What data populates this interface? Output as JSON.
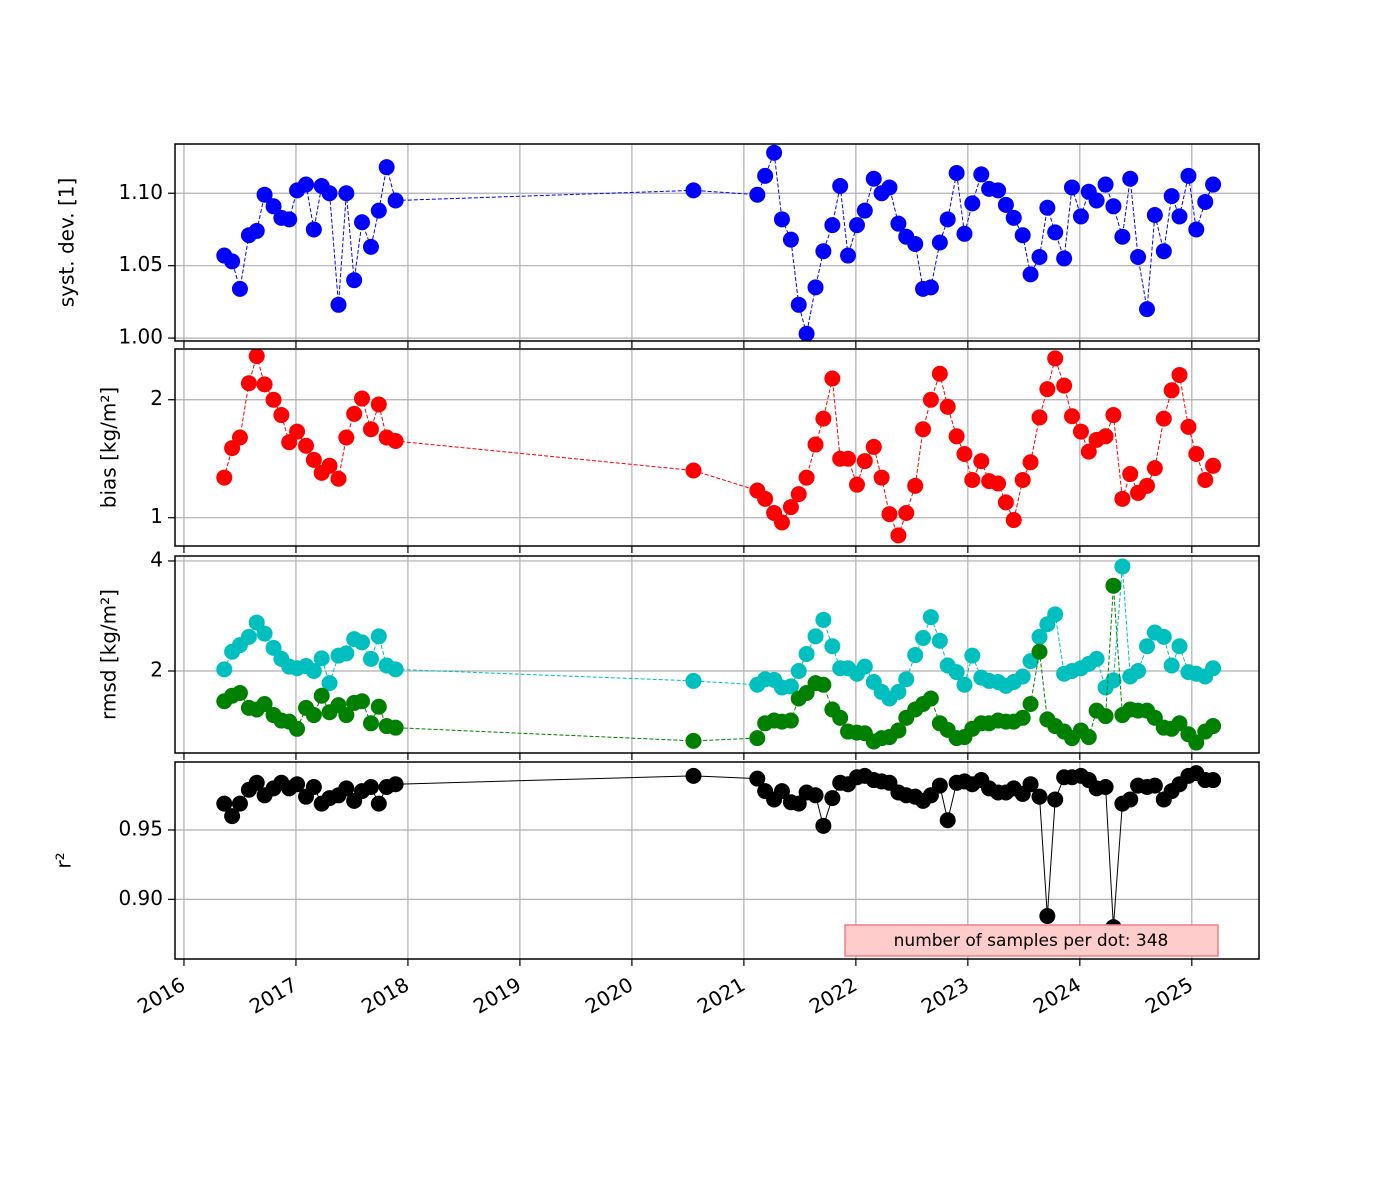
{
  "chart_data": [
    {
      "type": "line",
      "ylabel": "syst. dev. [1]",
      "x": [
        2016.36,
        2016.43,
        2016.5,
        2016.58,
        2016.65,
        2016.72,
        2016.8,
        2016.87,
        2016.94,
        2017.01,
        2017.09,
        2017.16,
        2017.23,
        2017.3,
        2017.38,
        2017.45,
        2017.52,
        2017.59,
        2017.67,
        2017.74,
        2017.81,
        2017.89,
        2020.55,
        2021.12,
        2021.19,
        2021.27,
        2021.34,
        2021.42,
        2021.49,
        2021.56,
        2021.64,
        2021.71,
        2021.79,
        2021.86,
        2021.93,
        2022.01,
        2022.08,
        2022.16,
        2022.23,
        2022.3,
        2022.38,
        2022.45,
        2022.53,
        2022.6,
        2022.67,
        2022.75,
        2022.82,
        2022.9,
        2022.97,
        2023.04,
        2023.12,
        2023.19,
        2023.27,
        2023.34,
        2023.41,
        2023.49,
        2023.56,
        2023.64,
        2023.71,
        2023.78,
        2023.86,
        2023.93,
        2024.01,
        2024.08,
        2024.15,
        2024.23,
        2024.3,
        2024.38,
        2024.45,
        2024.52,
        2024.6,
        2024.67,
        2024.75,
        2024.82,
        2024.89,
        2024.97,
        2025.04,
        2025.12,
        2025.19
      ],
      "series": [
        {
          "color": "#0000ff",
          "linestyle": "dashed",
          "values": [
            1.057,
            1.053,
            1.034,
            1.071,
            1.074,
            1.099,
            1.091,
            1.083,
            1.082,
            1.102,
            1.106,
            1.075,
            1.105,
            1.1,
            1.023,
            1.1,
            1.04,
            1.08,
            1.063,
            1.088,
            1.118,
            1.095,
            1.102,
            1.099,
            1.112,
            1.128,
            1.082,
            1.068,
            1.023,
            1.003,
            1.035,
            1.06,
            1.078,
            1.105,
            1.057,
            1.078,
            1.088,
            1.11,
            1.1,
            1.104,
            1.079,
            1.07,
            1.065,
            1.034,
            1.035,
            1.066,
            1.082,
            1.114,
            1.072,
            1.093,
            1.113,
            1.103,
            1.102,
            1.092,
            1.083,
            1.071,
            1.044,
            1.056,
            1.09,
            1.073,
            1.055,
            1.104,
            1.084,
            1.101,
            1.095,
            1.106,
            1.091,
            1.07,
            1.11,
            1.056,
            1.02,
            1.085,
            1.06,
            1.098,
            1.084,
            1.112,
            1.075,
            1.094,
            1.106
          ]
        }
      ],
      "xlim": [
        2015.92,
        2025.6
      ],
      "xticks": [
        2016,
        2017,
        2018,
        2019,
        2020,
        2021,
        2022,
        2023,
        2024,
        2025
      ],
      "ylim": [
        0.998,
        1.134
      ],
      "yticks": [
        {
          "value": 1.0,
          "label": "1.00"
        },
        1.05,
        {
          "value": 1.1,
          "label": "1.10"
        }
      ],
      "grid": true
    },
    {
      "type": "line",
      "ylabel": "bias [kg/m²]",
      "x": [
        2016.36,
        2016.43,
        2016.5,
        2016.58,
        2016.65,
        2016.72,
        2016.8,
        2016.87,
        2016.94,
        2017.01,
        2017.09,
        2017.16,
        2017.23,
        2017.3,
        2017.38,
        2017.45,
        2017.52,
        2017.59,
        2017.67,
        2017.74,
        2017.81,
        2017.89,
        2020.55,
        2021.12,
        2021.19,
        2021.27,
        2021.34,
        2021.42,
        2021.49,
        2021.56,
        2021.64,
        2021.71,
        2021.79,
        2021.86,
        2021.93,
        2022.01,
        2022.08,
        2022.16,
        2022.23,
        2022.3,
        2022.38,
        2022.45,
        2022.53,
        2022.6,
        2022.67,
        2022.75,
        2022.82,
        2022.9,
        2022.97,
        2023.04,
        2023.12,
        2023.19,
        2023.27,
        2023.34,
        2023.41,
        2023.49,
        2023.56,
        2023.64,
        2023.71,
        2023.78,
        2023.86,
        2023.93,
        2024.01,
        2024.08,
        2024.15,
        2024.23,
        2024.3,
        2024.38,
        2024.45,
        2024.52,
        2024.6,
        2024.67,
        2024.75,
        2024.82,
        2024.89,
        2024.97,
        2025.04,
        2025.12,
        2025.19
      ],
      "series": [
        {
          "color": "#ff0000",
          "linestyle": "dashed",
          "values": [
            1.34,
            1.59,
            1.68,
            2.14,
            2.37,
            2.13,
            2.0,
            1.87,
            1.64,
            1.73,
            1.61,
            1.49,
            1.38,
            1.44,
            1.33,
            1.68,
            1.88,
            2.01,
            1.75,
            1.96,
            1.68,
            1.65,
            1.4,
            1.23,
            1.16,
            1.04,
            0.96,
            1.09,
            1.2,
            1.34,
            1.62,
            1.84,
            2.18,
            1.5,
            1.5,
            1.28,
            1.48,
            1.6,
            1.34,
            1.03,
            0.85,
            1.04,
            1.27,
            1.75,
            2.0,
            2.22,
            1.94,
            1.69,
            1.54,
            1.32,
            1.48,
            1.31,
            1.29,
            1.13,
            0.98,
            1.32,
            1.47,
            1.85,
            2.09,
            2.35,
            2.12,
            1.86,
            1.73,
            1.56,
            1.66,
            1.69,
            1.87,
            1.16,
            1.37,
            1.21,
            1.27,
            1.42,
            1.84,
            2.08,
            2.21,
            1.77,
            1.54,
            1.32,
            1.44
          ]
        }
      ],
      "xlim": [
        2015.92,
        2025.6
      ],
      "xticks": [
        2016,
        2017,
        2018,
        2019,
        2020,
        2021,
        2022,
        2023,
        2024,
        2025
      ],
      "ylim": [
        0.76,
        2.43
      ],
      "yticks": [
        1,
        2
      ],
      "grid": true
    },
    {
      "type": "line",
      "ylabel": "rmsd [kg/m²]",
      "x": [
        2016.36,
        2016.43,
        2016.5,
        2016.58,
        2016.65,
        2016.72,
        2016.8,
        2016.87,
        2016.94,
        2017.01,
        2017.09,
        2017.16,
        2017.23,
        2017.3,
        2017.38,
        2017.45,
        2017.52,
        2017.59,
        2017.67,
        2017.74,
        2017.81,
        2017.89,
        2020.55,
        2021.12,
        2021.19,
        2021.27,
        2021.34,
        2021.42,
        2021.49,
        2021.56,
        2021.64,
        2021.71,
        2021.79,
        2021.86,
        2021.93,
        2022.01,
        2022.08,
        2022.16,
        2022.23,
        2022.3,
        2022.38,
        2022.45,
        2022.53,
        2022.6,
        2022.67,
        2022.75,
        2022.82,
        2022.9,
        2022.97,
        2023.04,
        2023.12,
        2023.19,
        2023.27,
        2023.34,
        2023.41,
        2023.49,
        2023.56,
        2023.64,
        2023.71,
        2023.78,
        2023.86,
        2023.93,
        2024.01,
        2024.08,
        2024.15,
        2024.23,
        2024.3,
        2024.38,
        2024.45,
        2024.52,
        2024.6,
        2024.67,
        2024.75,
        2024.82,
        2024.89,
        2024.97,
        2025.04,
        2025.12,
        2025.19
      ],
      "series": [
        {
          "color": "#00bfbf",
          "linestyle": "dashed",
          "values": [
            2.03,
            2.35,
            2.47,
            2.62,
            2.88,
            2.68,
            2.42,
            2.22,
            2.08,
            2.05,
            2.09,
            2.0,
            2.23,
            1.78,
            2.28,
            2.32,
            2.58,
            2.52,
            2.22,
            2.63,
            2.1,
            2.03,
            1.82,
            1.75,
            1.85,
            1.84,
            1.7,
            1.72,
            2.0,
            2.31,
            2.63,
            2.93,
            2.45,
            2.05,
            2.05,
            1.95,
            2.08,
            1.8,
            1.62,
            1.5,
            1.62,
            1.85,
            2.29,
            2.6,
            2.98,
            2.55,
            2.1,
            1.98,
            1.75,
            2.28,
            1.88,
            1.82,
            1.8,
            1.73,
            1.8,
            1.9,
            2.18,
            2.62,
            2.85,
            3.03,
            1.95,
            2.0,
            2.05,
            2.13,
            2.22,
            1.7,
            1.83,
            3.9,
            1.9,
            2.0,
            2.45,
            2.7,
            2.62,
            2.1,
            2.45,
            1.98,
            1.95,
            1.9,
            2.05
          ]
        },
        {
          "color": "#008000",
          "linestyle": "dashed",
          "values": [
            1.45,
            1.55,
            1.6,
            1.33,
            1.3,
            1.4,
            1.2,
            1.1,
            1.08,
            0.95,
            1.33,
            1.2,
            1.55,
            1.25,
            1.38,
            1.2,
            1.42,
            1.45,
            1.05,
            1.35,
            1.0,
            0.97,
            0.73,
            0.78,
            1.05,
            1.1,
            1.08,
            1.1,
            1.5,
            1.6,
            1.78,
            1.75,
            1.3,
            1.15,
            0.9,
            0.88,
            0.87,
            0.72,
            0.78,
            0.8,
            0.92,
            1.15,
            1.3,
            1.4,
            1.5,
            1.05,
            0.93,
            0.78,
            0.8,
            0.95,
            1.05,
            1.05,
            1.1,
            1.08,
            1.08,
            1.15,
            1.4,
            2.35,
            1.12,
            1.0,
            0.9,
            0.78,
            0.92,
            0.8,
            1.28,
            1.18,
            3.55,
            1.2,
            1.3,
            1.28,
            1.28,
            1.15,
            0.97,
            0.95,
            1.05,
            0.85,
            0.7,
            0.9,
            1.0
          ]
        }
      ],
      "xlim": [
        2015.92,
        2025.6
      ],
      "xticks": [
        2016,
        2017,
        2018,
        2019,
        2020,
        2021,
        2022,
        2023,
        2024,
        2025
      ],
      "ylim": [
        0.51,
        4.09
      ],
      "yticks": [
        2,
        4
      ],
      "grid": true
    },
    {
      "type": "line",
      "ylabel": "r²",
      "annotation": "number of samples per dot: 348",
      "x": [
        2016.36,
        2016.43,
        2016.5,
        2016.58,
        2016.65,
        2016.72,
        2016.8,
        2016.87,
        2016.94,
        2017.01,
        2017.09,
        2017.16,
        2017.23,
        2017.3,
        2017.38,
        2017.45,
        2017.52,
        2017.59,
        2017.67,
        2017.74,
        2017.81,
        2017.89,
        2020.55,
        2021.12,
        2021.19,
        2021.27,
        2021.34,
        2021.42,
        2021.49,
        2021.56,
        2021.64,
        2021.71,
        2021.79,
        2021.86,
        2021.93,
        2022.01,
        2022.08,
        2022.16,
        2022.23,
        2022.3,
        2022.38,
        2022.45,
        2022.53,
        2022.6,
        2022.67,
        2022.75,
        2022.82,
        2022.9,
        2022.97,
        2023.04,
        2023.12,
        2023.19,
        2023.27,
        2023.34,
        2023.41,
        2023.49,
        2023.56,
        2023.64,
        2023.71,
        2023.78,
        2023.86,
        2023.93,
        2024.01,
        2024.08,
        2024.15,
        2024.23,
        2024.3,
        2024.38,
        2024.45,
        2024.52,
        2024.6,
        2024.67,
        2024.75,
        2024.82,
        2024.89,
        2024.97,
        2025.04,
        2025.12,
        2025.19
      ],
      "series": [
        {
          "color": "#000000",
          "linestyle": "solid",
          "values": [
            0.969,
            0.96,
            0.969,
            0.979,
            0.984,
            0.975,
            0.98,
            0.984,
            0.98,
            0.983,
            0.974,
            0.981,
            0.969,
            0.973,
            0.975,
            0.98,
            0.971,
            0.978,
            0.981,
            0.969,
            0.981,
            0.983,
            0.989,
            0.987,
            0.978,
            0.972,
            0.978,
            0.97,
            0.969,
            0.977,
            0.975,
            0.953,
            0.973,
            0.984,
            0.983,
            0.988,
            0.989,
            0.986,
            0.985,
            0.984,
            0.977,
            0.975,
            0.974,
            0.971,
            0.975,
            0.982,
            0.957,
            0.984,
            0.985,
            0.983,
            0.986,
            0.98,
            0.977,
            0.977,
            0.98,
            0.976,
            0.983,
            0.974,
            0.888,
            0.972,
            0.988,
            0.988,
            0.989,
            0.986,
            0.98,
            0.981,
            0.88,
            0.969,
            0.972,
            0.982,
            0.981,
            0.982,
            0.972,
            0.978,
            0.983,
            0.989,
            0.991,
            0.986,
            0.986
          ]
        }
      ],
      "xlim": [
        2015.92,
        2025.6
      ],
      "xticks": [
        2016,
        2017,
        2018,
        2019,
        2020,
        2021,
        2022,
        2023,
        2024,
        2025
      ],
      "ylim": [
        0.857,
        0.999
      ],
      "yticks": [
        {
          "value": 0.9,
          "label": "0.90"
        },
        0.95
      ],
      "grid": true
    }
  ]
}
